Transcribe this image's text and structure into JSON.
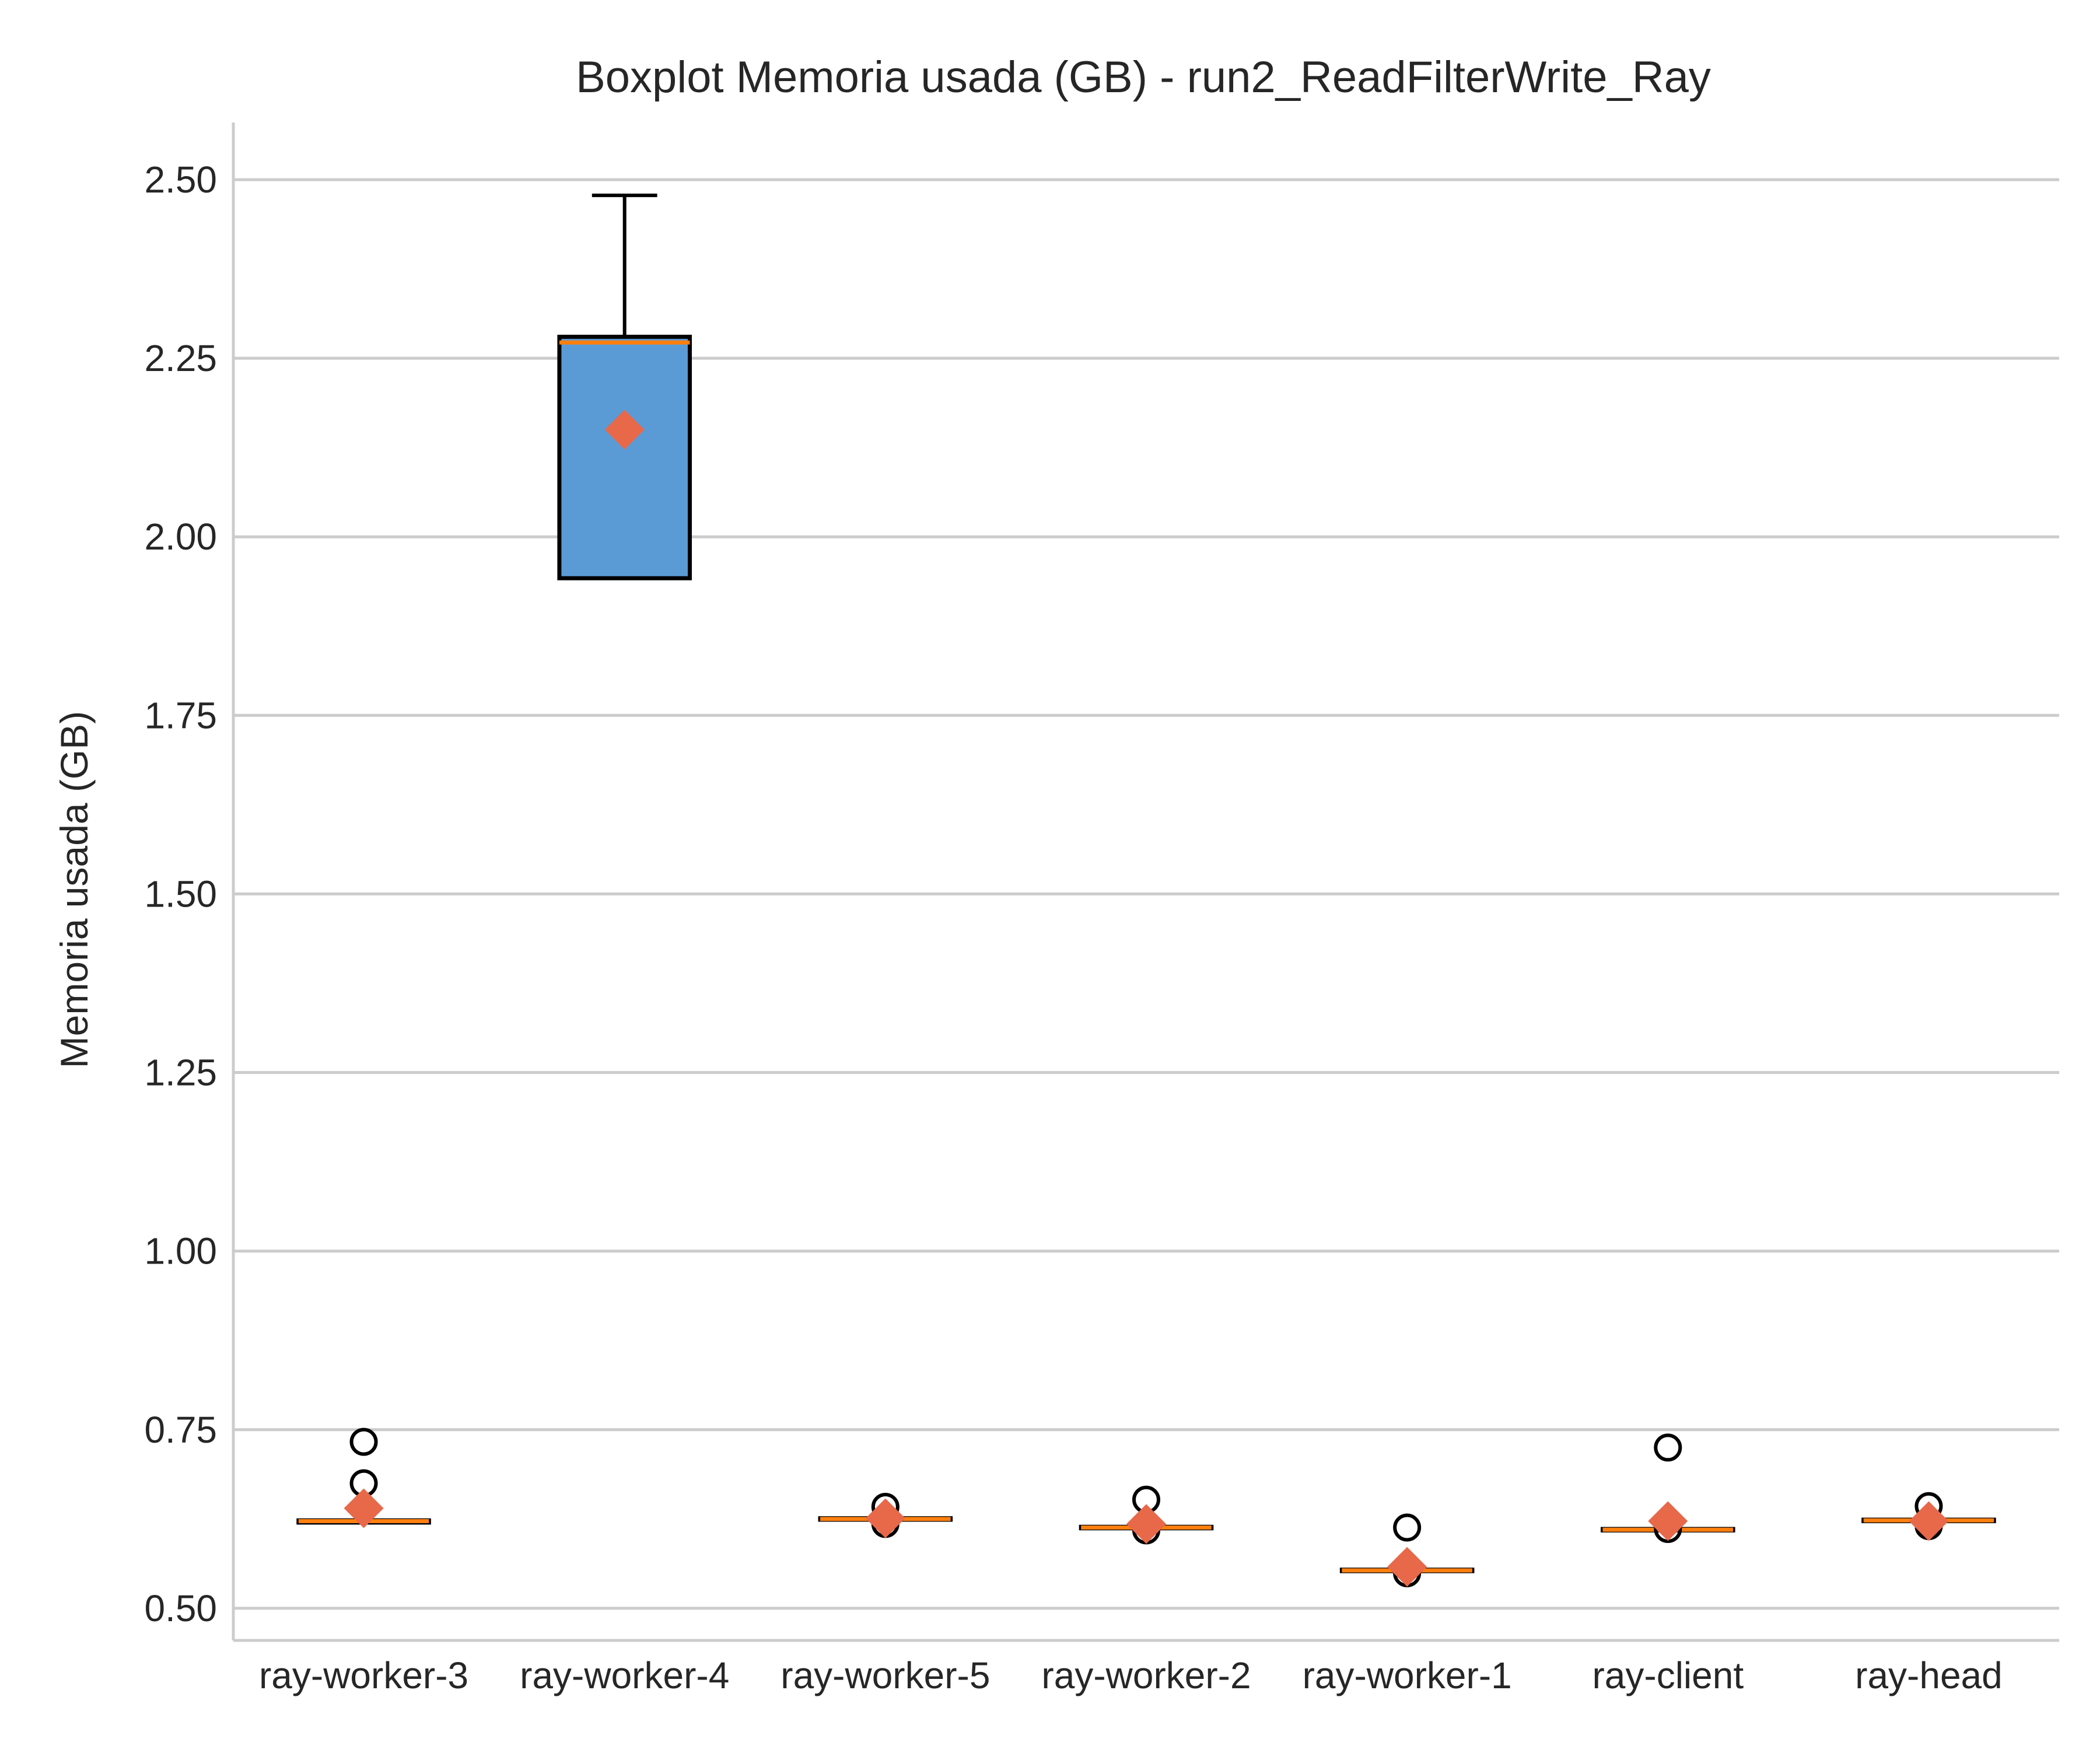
{
  "chart_data": {
    "type": "boxplot",
    "title": "Boxplot Memoria usada (GB) - run2_ReadFilterWrite_Ray",
    "xlabel": "",
    "ylabel": "Memoria usada (GB)",
    "ylim": [
      0.455,
      2.58
    ],
    "yticks": [
      0.5,
      0.75,
      1.0,
      1.25,
      1.5,
      1.75,
      2.0,
      2.25,
      2.5
    ],
    "ytick_labels": [
      "0.50",
      "0.75",
      "1.00",
      "1.25",
      "1.50",
      "1.75",
      "2.00",
      "2.25",
      "2.50"
    ],
    "grid": "horizontal",
    "categories": [
      "ray-worker-3",
      "ray-worker-4",
      "ray-worker-5",
      "ray-worker-2",
      "ray-worker-1",
      "ray-client",
      "ray-head"
    ],
    "boxes": [
      {
        "category": "ray-worker-3",
        "q1": 0.62,
        "median": 0.622,
        "q3": 0.623,
        "whisker_low": 0.62,
        "whisker_high": 0.623,
        "mean": 0.64,
        "outliers": [
          0.733,
          0.675
        ]
      },
      {
        "category": "ray-worker-4",
        "q1": 1.942,
        "median": 2.272,
        "q3": 2.28,
        "whisker_low": 1.942,
        "whisker_high": 2.478,
        "mean": 2.15,
        "outliers": []
      },
      {
        "category": "ray-worker-5",
        "q1": 0.624,
        "median": 0.625,
        "q3": 0.626,
        "whisker_low": 0.624,
        "whisker_high": 0.626,
        "mean": 0.626,
        "outliers": [
          0.642,
          0.618
        ]
      },
      {
        "category": "ray-worker-2",
        "q1": 0.612,
        "median": 0.613,
        "q3": 0.614,
        "whisker_low": 0.612,
        "whisker_high": 0.614,
        "mean": 0.618,
        "outliers": [
          0.652,
          0.609
        ]
      },
      {
        "category": "ray-worker-1",
        "q1": 0.552,
        "median": 0.553,
        "q3": 0.554,
        "whisker_low": 0.552,
        "whisker_high": 0.554,
        "mean": 0.558,
        "outliers": [
          0.613,
          0.549
        ]
      },
      {
        "category": "ray-client",
        "q1": 0.609,
        "median": 0.61,
        "q3": 0.611,
        "whisker_low": 0.609,
        "whisker_high": 0.611,
        "mean": 0.622,
        "outliers": [
          0.725,
          0.611
        ]
      },
      {
        "category": "ray-head",
        "q1": 0.622,
        "median": 0.623,
        "q3": 0.624,
        "whisker_low": 0.622,
        "whisker_high": 0.624,
        "mean": 0.622,
        "outliers": [
          0.643,
          0.615
        ]
      }
    ],
    "colors": {
      "box_fill": "#5b9bd5",
      "box_edge": "#000000",
      "median": "#ff7f0e",
      "mean_marker": "#e8684a",
      "outlier_edge": "#000000",
      "grid": "#cccccc",
      "spine": "#cccccc"
    }
  }
}
